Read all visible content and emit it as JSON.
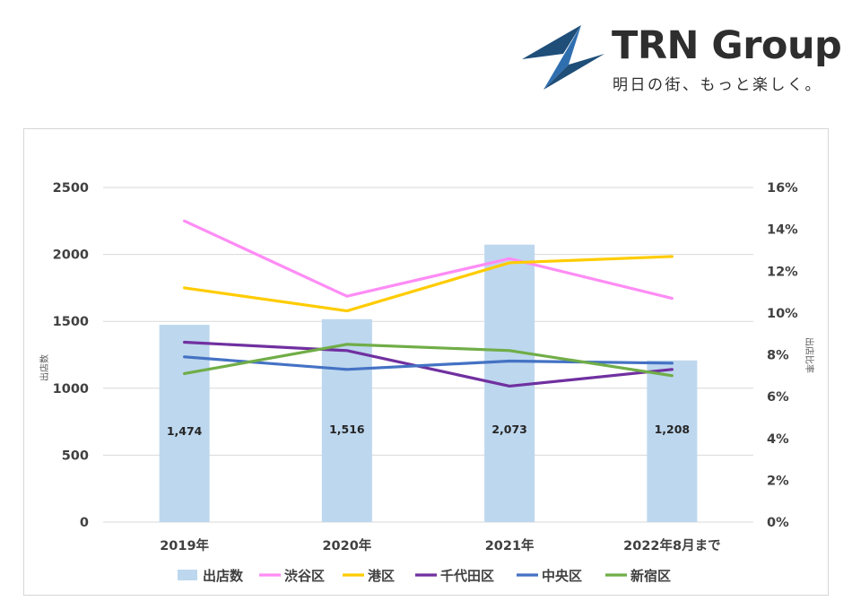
{
  "logo": {
    "name": "TRN Group",
    "tagline": "明日の街、もっと楽しく。",
    "colors": {
      "navy": "#1f4e79",
      "blue": "#2f6fb0",
      "text": "#2e2e2e"
    }
  },
  "chart_data": {
    "type": "bar",
    "title": "",
    "categories": [
      "2019年",
      "2020年",
      "2021年",
      "2022年8月まで"
    ],
    "ylabel": "出店数",
    "y2label": "出店比率",
    "ylim": [
      0,
      2500
    ],
    "yticks": [
      0,
      500,
      1000,
      1500,
      2000,
      2500
    ],
    "y2lim": [
      0,
      16
    ],
    "y2ticks": [
      "0%",
      "2%",
      "4%",
      "6%",
      "8%",
      "10%",
      "12%",
      "14%",
      "16%"
    ],
    "grid": true,
    "legend_position": "bottom",
    "bars": {
      "name": "出店数",
      "values": [
        1474,
        1516,
        2073,
        1208
      ],
      "labels": [
        "1,474",
        "1,516",
        "2,073",
        "1,208"
      ],
      "color": "#bdd7ee"
    },
    "series": [
      {
        "name": "渋谷区",
        "axis": "right",
        "color": "#ff8cf5",
        "values": [
          14.4,
          10.8,
          12.6,
          10.7
        ]
      },
      {
        "name": "港区",
        "axis": "right",
        "color": "#ffcc00",
        "values": [
          11.2,
          10.1,
          12.4,
          12.7
        ]
      },
      {
        "name": "千代田区",
        "axis": "right",
        "color": "#7030a0",
        "values": [
          8.6,
          8.2,
          6.5,
          7.3
        ]
      },
      {
        "name": "中央区",
        "axis": "right",
        "color": "#4472c4",
        "values": [
          7.9,
          7.3,
          7.7,
          7.6
        ]
      },
      {
        "name": "新宿区",
        "axis": "right",
        "color": "#70ad47",
        "values": [
          7.1,
          8.5,
          8.2,
          7.0
        ]
      }
    ]
  }
}
